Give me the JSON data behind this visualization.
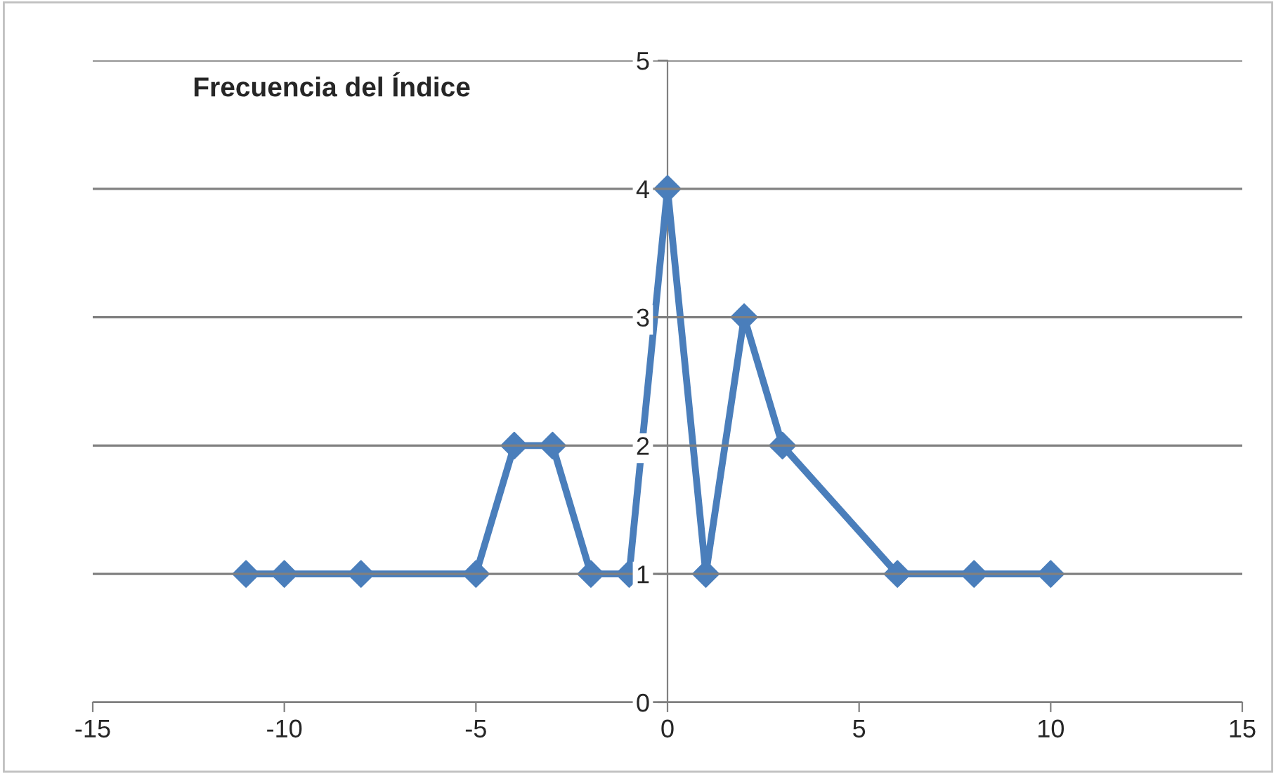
{
  "chart_data": {
    "type": "line",
    "title": "Frecuencia del Índice",
    "x": [
      -11,
      -10,
      -8,
      -5,
      -4,
      -3,
      -2,
      -1,
      0,
      1,
      2,
      3,
      6,
      8,
      10
    ],
    "series": [
      {
        "color": "#4a7ebb",
        "values": [
          1,
          1,
          1,
          1,
          2,
          2,
          1,
          1,
          4,
          1,
          3,
          2,
          1,
          1,
          1
        ]
      }
    ],
    "xlim": [
      -15,
      15
    ],
    "xticks": [
      -15,
      -10,
      -5,
      0,
      5,
      10,
      15
    ],
    "ylim": [
      0,
      5
    ],
    "yticks": [
      0,
      1,
      2,
      3,
      4,
      5
    ],
    "grid": "y",
    "marker": "diamond",
    "line_style": "solid"
  }
}
